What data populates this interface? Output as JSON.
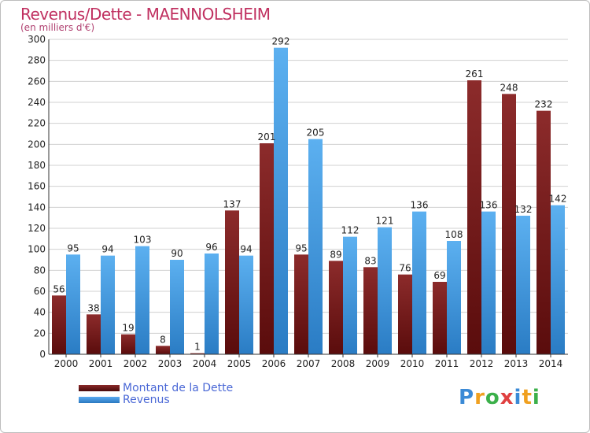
{
  "title": "Revenus/Dette - MAENNOLSHEIM",
  "subtitle": "(en milliers d'€)",
  "legend": {
    "dette_label": "Montant de la Dette",
    "revenus_label": "Revenus"
  },
  "brand": {
    "text": "Proxiti",
    "letters": [
      "P",
      "r",
      "o",
      "x",
      "i",
      "t",
      "i"
    ],
    "colors": [
      "#3b8ad6",
      "#f0a020",
      "#3bb04a",
      "#e04040",
      "#3b8ad6",
      "#f0a020",
      "#3bb04a"
    ]
  },
  "colors": {
    "dette": "#7a1e1e",
    "revenus": "#4a9fe0",
    "grid": "#d0d0d0",
    "title": "#c03060",
    "legend_text": "#4a68d6"
  },
  "chart_data": {
    "type": "bar",
    "title": "Revenus/Dette - MAENNOLSHEIM",
    "subtitle": "(en milliers d'€)",
    "categories": [
      "2000",
      "2001",
      "2002",
      "2003",
      "2004",
      "2005",
      "2006",
      "2007",
      "2008",
      "2009",
      "2010",
      "2011",
      "2012",
      "2013",
      "2014"
    ],
    "series": [
      {
        "name": "Montant de la Dette",
        "values": [
          56,
          38,
          19,
          8,
          1,
          137,
          201,
          95,
          89,
          83,
          76,
          69,
          261,
          248,
          232
        ]
      },
      {
        "name": "Revenus",
        "values": [
          95,
          94,
          103,
          90,
          96,
          94,
          292,
          205,
          112,
          121,
          136,
          108,
          136,
          132,
          142
        ]
      }
    ],
    "ylim": [
      0,
      300
    ],
    "yticks": [
      0,
      20,
      40,
      60,
      80,
      100,
      120,
      140,
      160,
      180,
      200,
      220,
      240,
      260,
      280,
      300
    ],
    "grid": true,
    "legend_position": "bottom-left"
  }
}
